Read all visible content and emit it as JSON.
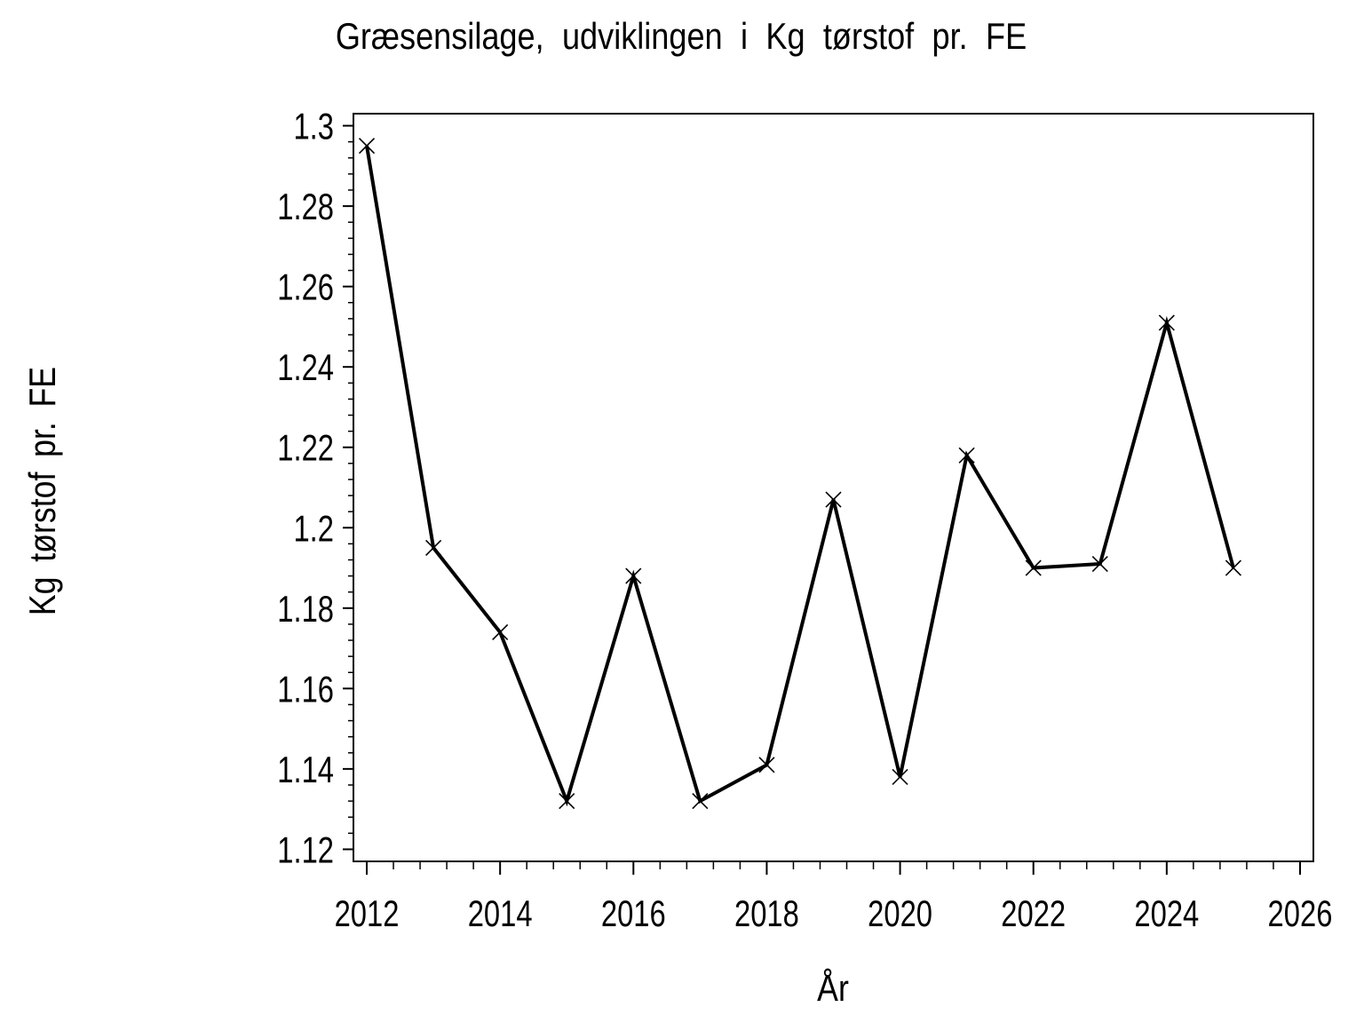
{
  "chart_data": {
    "type": "line",
    "title": "Græsensilage, udviklingen i Kg tørstof pr. FE",
    "xlabel": "År",
    "ylabel": "Kg tørstof pr. FE",
    "x": [
      2012,
      2013,
      2014,
      2015,
      2016,
      2017,
      2018,
      2019,
      2020,
      2021,
      2022,
      2023,
      2024,
      2025
    ],
    "y": [
      1.295,
      1.195,
      1.174,
      1.132,
      1.188,
      1.132,
      1.141,
      1.207,
      1.138,
      1.218,
      1.19,
      1.191,
      1.251,
      1.19
    ],
    "series": [
      {
        "name": "Kg tørstof pr. FE",
        "values": [
          1.295,
          1.195,
          1.174,
          1.132,
          1.188,
          1.132,
          1.141,
          1.207,
          1.138,
          1.218,
          1.19,
          1.191,
          1.251,
          1.19
        ]
      }
    ],
    "xlim": [
      2011.8,
      2026.2
    ],
    "ylim": [
      1.117,
      1.303
    ],
    "xticks": {
      "start": 2012,
      "step": 2,
      "end": 2026,
      "minor_divisions": 5
    },
    "yticks": {
      "start": 1.12,
      "step": 0.02,
      "end": 1.3,
      "minor_divisions": 5
    },
    "x_tick_labels": [
      "2012",
      "2014",
      "2016",
      "2018",
      "2020",
      "2022",
      "2024",
      "2026"
    ],
    "y_tick_labels": [
      "1.12",
      "1.14",
      "1.16",
      "1.18",
      "1.2",
      "1.22",
      "1.24",
      "1.26",
      "1.28",
      "1.3"
    ],
    "marker": "x-cross",
    "line_color": "#000000",
    "marker_color": "#000000",
    "background_color": "#ffffff",
    "grid": false,
    "legend": "none"
  }
}
